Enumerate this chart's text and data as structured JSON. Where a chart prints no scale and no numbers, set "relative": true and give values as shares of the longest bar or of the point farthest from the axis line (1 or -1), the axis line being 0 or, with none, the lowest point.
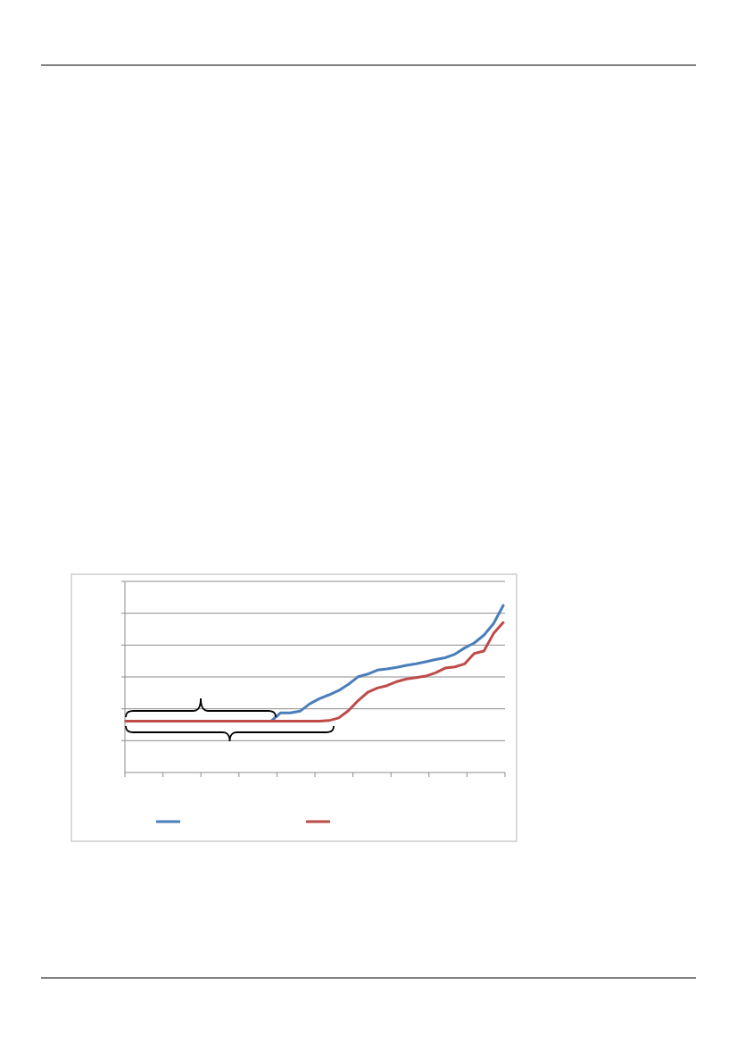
{
  "chart_data": {
    "type": "line",
    "relative": true,
    "categories": [
      null,
      null,
      null,
      null,
      null,
      null,
      null,
      null,
      null,
      null,
      null,
      null,
      null,
      null,
      null,
      null,
      null,
      null,
      null,
      null,
      null,
      null,
      null,
      null,
      null,
      null,
      null,
      null,
      null,
      null,
      null,
      null,
      null,
      null,
      null,
      null,
      null,
      null,
      null,
      null
    ],
    "grid": true,
    "line_style": "solid",
    "series": [
      {
        "color": "#4a7ebb",
        "values": [
          null,
          null,
          null,
          null,
          null,
          null,
          null,
          null,
          null,
          null,
          null,
          null,
          null,
          null,
          null,
          0.307,
          0.357,
          0.357,
          0.367,
          0.411,
          0.442,
          0.465,
          0.491,
          0.528,
          0.573,
          0.589,
          0.613,
          0.62,
          0.629,
          0.641,
          0.651,
          0.663,
          0.676,
          0.687,
          0.708,
          0.745,
          0.775,
          0.822,
          0.891,
          1.0
        ]
      },
      {
        "color": "#be4b48",
        "values": [
          0.307,
          0.307,
          0.307,
          0.307,
          0.307,
          0.307,
          0.307,
          0.307,
          0.307,
          0.307,
          0.307,
          0.307,
          0.307,
          0.307,
          0.307,
          0.307,
          0.307,
          0.307,
          0.307,
          0.307,
          0.307,
          0.311,
          0.327,
          0.37,
          0.43,
          0.481,
          0.506,
          0.52,
          0.544,
          0.56,
          0.568,
          0.577,
          0.597,
          0.625,
          0.632,
          0.65,
          0.712,
          0.727,
          0.832,
          0.898
        ]
      }
    ]
  }
}
